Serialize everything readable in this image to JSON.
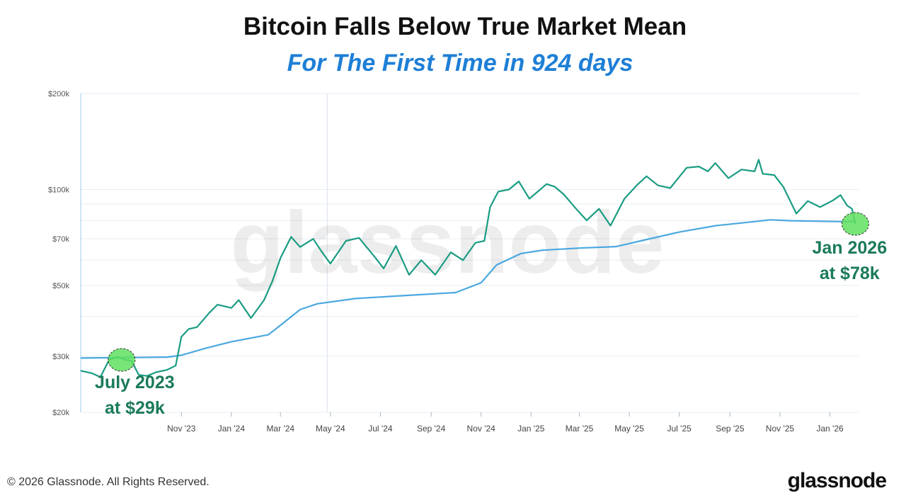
{
  "header": {
    "title": "Bitcoin Falls Below True Market Mean",
    "subtitle": "For The First Time in 924 days"
  },
  "footer": {
    "copyright": "© 2026 Glassnode. All Rights Reserved.",
    "logo": "glassnode"
  },
  "watermark": "glassnode",
  "colors": {
    "price": "#1a9c82",
    "mean": "#4aa8e0",
    "subtitle": "#1e7fd6",
    "annotation": "#1b7a5a",
    "highlight": "#5fe05f",
    "grid": "#e6edf3"
  },
  "chart_data": {
    "type": "line",
    "y_scale": "log",
    "ylim": [
      20000,
      200000
    ],
    "y_ticks": [
      {
        "value": 20000,
        "label": "$20k"
      },
      {
        "value": 30000,
        "label": "$30k"
      },
      {
        "value": 50000,
        "label": "$50k"
      },
      {
        "value": 70000,
        "label": "$70k"
      },
      {
        "value": 100000,
        "label": "$100k"
      },
      {
        "value": 200000,
        "label": "$200k"
      }
    ],
    "xlim": [
      "2023-07-01",
      "2026-02-05"
    ],
    "x_ticks": [
      {
        "date": "2023-11-01",
        "label": "Nov '23"
      },
      {
        "date": "2024-01-01",
        "label": "Jan '24"
      },
      {
        "date": "2024-03-01",
        "label": "Mar '24"
      },
      {
        "date": "2024-05-01",
        "label": "May '24"
      },
      {
        "date": "2024-07-01",
        "label": "Jul '24"
      },
      {
        "date": "2024-09-01",
        "label": "Sep '24"
      },
      {
        "date": "2024-11-01",
        "label": "Nov '24"
      },
      {
        "date": "2025-01-01",
        "label": "Jan '25"
      },
      {
        "date": "2025-03-01",
        "label": "Mar '25"
      },
      {
        "date": "2025-05-01",
        "label": "May '25"
      },
      {
        "date": "2025-07-01",
        "label": "Jul '25"
      },
      {
        "date": "2025-09-01",
        "label": "Sep '25"
      },
      {
        "date": "2025-11-01",
        "label": "Nov '25"
      },
      {
        "date": "2026-01-01",
        "label": "Jan '26"
      }
    ],
    "series": [
      {
        "color": "#1a9c82",
        "points": [
          [
            "2023-07-01",
            27000
          ],
          [
            "2023-07-15",
            26500
          ],
          [
            "2023-07-25",
            25800
          ],
          [
            "2023-08-05",
            29300
          ],
          [
            "2023-08-15",
            29800
          ],
          [
            "2023-08-25",
            29200
          ],
          [
            "2023-09-01",
            29000
          ],
          [
            "2023-09-10",
            26200
          ],
          [
            "2023-09-20",
            26000
          ],
          [
            "2023-10-01",
            26700
          ],
          [
            "2023-10-15",
            27200
          ],
          [
            "2023-10-25",
            28000
          ],
          [
            "2023-11-01",
            34500
          ],
          [
            "2023-11-10",
            36500
          ],
          [
            "2023-11-20",
            37000
          ],
          [
            "2023-12-05",
            41000
          ],
          [
            "2023-12-15",
            43500
          ],
          [
            "2024-01-01",
            42500
          ],
          [
            "2024-01-10",
            45000
          ],
          [
            "2024-01-25",
            39500
          ],
          [
            "2024-02-10",
            45000
          ],
          [
            "2024-02-20",
            51500
          ],
          [
            "2024-03-01",
            61000
          ],
          [
            "2024-03-14",
            71000
          ],
          [
            "2024-03-25",
            66000
          ],
          [
            "2024-04-10",
            70000
          ],
          [
            "2024-04-20",
            64000
          ],
          [
            "2024-05-01",
            58500
          ],
          [
            "2024-05-20",
            69000
          ],
          [
            "2024-06-05",
            70500
          ],
          [
            "2024-06-25",
            61000
          ],
          [
            "2024-07-05",
            56500
          ],
          [
            "2024-07-20",
            66500
          ],
          [
            "2024-08-05",
            54000
          ],
          [
            "2024-08-20",
            60000
          ],
          [
            "2024-09-06",
            54000
          ],
          [
            "2024-09-25",
            63500
          ],
          [
            "2024-10-10",
            60000
          ],
          [
            "2024-10-25",
            68000
          ],
          [
            "2024-11-05",
            69000
          ],
          [
            "2024-11-12",
            88000
          ],
          [
            "2024-11-22",
            98500
          ],
          [
            "2024-12-05",
            100000
          ],
          [
            "2024-12-17",
            106000
          ],
          [
            "2024-12-30",
            93500
          ],
          [
            "2025-01-20",
            104000
          ],
          [
            "2025-01-30",
            102000
          ],
          [
            "2025-02-10",
            96500
          ],
          [
            "2025-02-25",
            87000
          ],
          [
            "2025-03-10",
            80000
          ],
          [
            "2025-03-25",
            87000
          ],
          [
            "2025-04-08",
            77000
          ],
          [
            "2025-04-25",
            93500
          ],
          [
            "2025-05-10",
            103000
          ],
          [
            "2025-05-22",
            110000
          ],
          [
            "2025-06-05",
            103000
          ],
          [
            "2025-06-20",
            101000
          ],
          [
            "2025-07-10",
            117000
          ],
          [
            "2025-07-25",
            118000
          ],
          [
            "2025-08-05",
            114000
          ],
          [
            "2025-08-14",
            121000
          ],
          [
            "2025-08-30",
            108500
          ],
          [
            "2025-09-15",
            115500
          ],
          [
            "2025-10-01",
            114000
          ],
          [
            "2025-10-06",
            124000
          ],
          [
            "2025-10-11",
            112000
          ],
          [
            "2025-10-25",
            111000
          ],
          [
            "2025-11-05",
            102000
          ],
          [
            "2025-11-21",
            84000
          ],
          [
            "2025-12-05",
            92000
          ],
          [
            "2025-12-20",
            88000
          ],
          [
            "2026-01-05",
            92500
          ],
          [
            "2026-01-14",
            96000
          ],
          [
            "2026-01-22",
            89000
          ],
          [
            "2026-01-28",
            87000
          ],
          [
            "2026-02-01",
            78000
          ]
        ]
      },
      {
        "color": "#4aa8e0",
        "points": [
          [
            "2023-07-01",
            29600
          ],
          [
            "2023-09-01",
            29700
          ],
          [
            "2023-10-15",
            29800
          ],
          [
            "2023-11-01",
            30200
          ],
          [
            "2023-12-01",
            31800
          ],
          [
            "2024-01-01",
            33300
          ],
          [
            "2024-02-15",
            35000
          ],
          [
            "2024-03-01",
            37500
          ],
          [
            "2024-03-25",
            42000
          ],
          [
            "2024-04-15",
            43800
          ],
          [
            "2024-06-01",
            45500
          ],
          [
            "2024-08-01",
            46500
          ],
          [
            "2024-10-01",
            47500
          ],
          [
            "2024-11-01",
            51000
          ],
          [
            "2024-11-20",
            58000
          ],
          [
            "2024-12-20",
            63000
          ],
          [
            "2025-01-15",
            64500
          ],
          [
            "2025-03-01",
            65500
          ],
          [
            "2025-04-15",
            66200
          ],
          [
            "2025-05-15",
            69000
          ],
          [
            "2025-07-01",
            73500
          ],
          [
            "2025-08-15",
            77000
          ],
          [
            "2025-10-01",
            79300
          ],
          [
            "2025-10-20",
            80300
          ],
          [
            "2025-11-15",
            79800
          ],
          [
            "2026-01-15",
            79300
          ],
          [
            "2026-02-01",
            79400
          ]
        ]
      }
    ],
    "annotations": [
      {
        "date": "2023-08-20",
        "value": 29200,
        "text_line1": "July 2023",
        "text_line2": "at $29k",
        "label_date": "2023-09-05",
        "label_value": 23800
      },
      {
        "date": "2026-02-01",
        "value": 78000,
        "text_line1": "Jan 2026",
        "text_line2": "at $78k",
        "label_date": "2026-01-25",
        "label_value": 63000
      }
    ]
  }
}
